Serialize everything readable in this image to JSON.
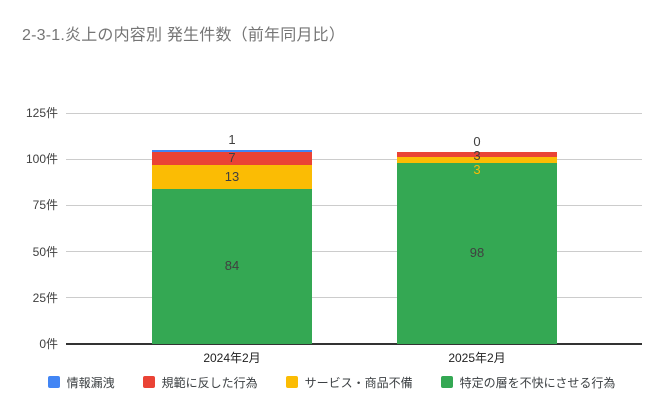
{
  "chart_data": {
    "type": "bar",
    "stacked": true,
    "title": "2-3-1.炎上の内容別 発生件数（前年同月比）",
    "categories": [
      "2024年2月",
      "2025年2月"
    ],
    "series": [
      {
        "name": "情報漏洩",
        "color": "#4285F4",
        "values": [
          1,
          0
        ]
      },
      {
        "name": "規範に反した行為",
        "color": "#EA4335",
        "values": [
          7,
          3
        ]
      },
      {
        "name": "サービス・商品不備",
        "color": "#FBBC04",
        "values": [
          13,
          3
        ]
      },
      {
        "name": "特定の層を不快にさせる行為",
        "color": "#34A853",
        "values": [
          84,
          98
        ]
      }
    ],
    "totals": [
      105,
      104
    ],
    "y_axis": {
      "unit": "件",
      "ticks": [
        0,
        25,
        50,
        75,
        100,
        125
      ],
      "tick_labels": [
        "0件",
        "25件",
        "50件",
        "75件",
        "100件",
        "125件"
      ],
      "max": 125
    },
    "legend_position": "bottom",
    "grid": true,
    "colors": {
      "title_text": "#757575",
      "axis_text": "#404040",
      "data_label_text": "#404040",
      "gridline": "#cccccc",
      "baseline": "#333333",
      "background": "#ffffff"
    }
  }
}
